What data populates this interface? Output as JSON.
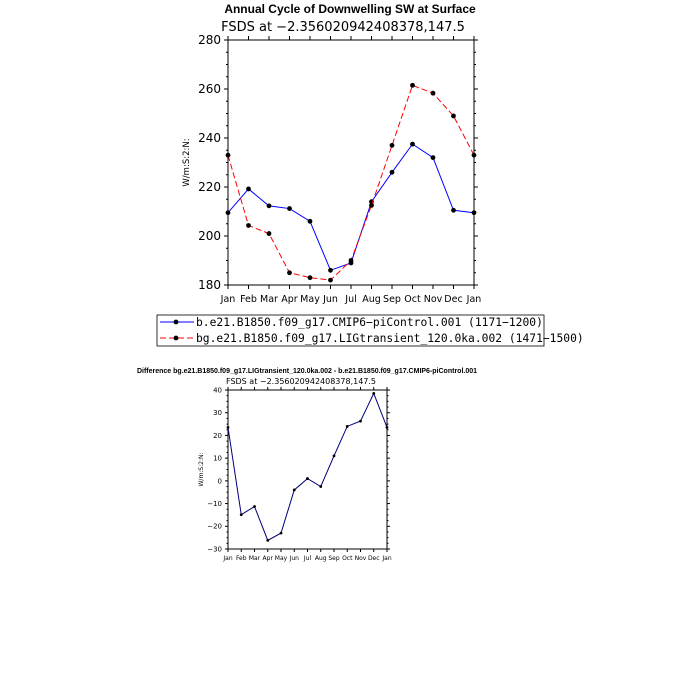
{
  "chart_data": [
    {
      "type": "line",
      "title": "Annual Cycle of Downwelling SW at Surface",
      "subtitle": "FSDS at −2.356020942408378,147.5",
      "ylabel": "W/m:S:2:N:",
      "xlabel": "",
      "categories": [
        "Jan",
        "Feb",
        "Mar",
        "Apr",
        "May",
        "Jun",
        "Jul",
        "Aug",
        "Sep",
        "Oct",
        "Nov",
        "Dec",
        "Jan"
      ],
      "ylim": [
        180,
        280
      ],
      "yticks": [
        "180",
        "200",
        "220",
        "240",
        "260",
        "280"
      ],
      "series": [
        {
          "name": "b.e21.B1850.f09_g17.CMIP6−piControl.001 (1171−1200)",
          "color": "#0000ff",
          "dash": "solid",
          "values": [
            209.5,
            219.2,
            212.3,
            211.2,
            206.0,
            186.0,
            189.0,
            214.0,
            226.0,
            237.5,
            232.0,
            210.5,
            209.5
          ]
        },
        {
          "name": "bg.e21.B1850.f09_g17.LIGtransient_120.0ka.002 (1471−1500)",
          "color": "#ff0000",
          "dash": "dashed",
          "values": [
            233.0,
            204.3,
            201.0,
            185.0,
            183.0,
            182.0,
            190.0,
            212.5,
            237.0,
            261.5,
            258.3,
            249.0,
            233.0
          ]
        }
      ],
      "legend_position": "bottom"
    },
    {
      "type": "line",
      "title": "Difference bg.e21.B1850.f09_g17.LIGtransient_120.0ka.002 - b.e21.B1850.f09_g17.CMIP6-piControl.001",
      "subtitle": "FSDS at −2.356020942408378,147.5",
      "ylabel": "W/m:S:2:N:",
      "xlabel": "",
      "categories": [
        "Jan",
        "Feb",
        "Mar",
        "Apr",
        "May",
        "Jun",
        "Jul",
        "Aug",
        "Sep",
        "Oct",
        "Nov",
        "Dec",
        "Jan"
      ],
      "ylim": [
        -30,
        40
      ],
      "yticks": [
        "−30",
        "−20",
        "−10",
        "0",
        "10",
        "20",
        "30",
        "40"
      ],
      "series": [
        {
          "name": "Difference",
          "color": "#000080",
          "dash": "solid",
          "values": [
            23.5,
            -14.9,
            -11.3,
            -26.2,
            -23.0,
            -4.0,
            1.0,
            -2.5,
            11.0,
            24.0,
            26.3,
            38.5,
            23.5
          ]
        }
      ]
    }
  ]
}
